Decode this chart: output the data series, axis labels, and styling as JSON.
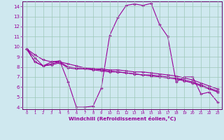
{
  "background_color": "#cfe8ef",
  "plot_bg_color": "#cfe8ef",
  "grid_color": "#9dc8b8",
  "line_color": "#990099",
  "spine_color": "#660066",
  "xlabel": "Windchill (Refroidissement éolien,°C)",
  "xlim": [
    -0.5,
    23.5
  ],
  "ylim": [
    3.8,
    14.5
  ],
  "yticks": [
    4,
    5,
    6,
    7,
    8,
    9,
    10,
    11,
    12,
    13,
    14
  ],
  "xticks": [
    0,
    1,
    2,
    3,
    4,
    5,
    6,
    7,
    8,
    9,
    10,
    11,
    12,
    13,
    14,
    15,
    16,
    17,
    18,
    19,
    20,
    21,
    22,
    23
  ],
  "series": [
    {
      "x": [
        0,
        1,
        2,
        3,
        4,
        5,
        6,
        7,
        8,
        9,
        10,
        11,
        12,
        13,
        14,
        15,
        16,
        17,
        18,
        19,
        20,
        21,
        22,
        23
      ],
      "y": [
        9.8,
        8.9,
        8.1,
        8.5,
        8.6,
        6.5,
        4.0,
        4.0,
        4.1,
        5.9,
        11.1,
        12.9,
        14.1,
        14.25,
        14.1,
        14.3,
        12.2,
        11.0,
        6.5,
        7.0,
        7.0,
        5.3,
        5.5,
        4.5
      ]
    },
    {
      "x": [
        0,
        1,
        2,
        3,
        4,
        5,
        6,
        7,
        8,
        9,
        10,
        11,
        12,
        13,
        14,
        15,
        16,
        17,
        18,
        19,
        20,
        21,
        22,
        23
      ],
      "y": [
        9.8,
        9.2,
        8.7,
        8.5,
        8.5,
        8.3,
        8.1,
        7.9,
        7.8,
        7.7,
        7.6,
        7.5,
        7.4,
        7.3,
        7.2,
        7.1,
        7.0,
        6.9,
        6.8,
        6.6,
        6.4,
        6.1,
        5.8,
        5.5
      ]
    },
    {
      "x": [
        0,
        1,
        2,
        3,
        4,
        5,
        6,
        7,
        8,
        9,
        10,
        11,
        12,
        13,
        14,
        15,
        16,
        17,
        18,
        19,
        20,
        21,
        22,
        23
      ],
      "y": [
        9.8,
        8.5,
        8.1,
        8.2,
        8.4,
        7.9,
        7.8,
        7.8,
        7.7,
        7.6,
        7.5,
        7.5,
        7.4,
        7.3,
        7.2,
        7.2,
        7.1,
        7.0,
        6.9,
        6.7,
        6.5,
        6.2,
        5.9,
        5.6
      ]
    },
    {
      "x": [
        0,
        1,
        2,
        3,
        4,
        5,
        6,
        7,
        8,
        9,
        10,
        11,
        12,
        13,
        14,
        15,
        16,
        17,
        18,
        19,
        20,
        21,
        22,
        23
      ],
      "y": [
        9.8,
        8.5,
        8.1,
        8.3,
        8.5,
        8.0,
        7.9,
        7.9,
        7.8,
        7.8,
        7.7,
        7.7,
        7.6,
        7.5,
        7.5,
        7.4,
        7.3,
        7.2,
        7.1,
        6.9,
        6.7,
        6.4,
        6.1,
        5.8
      ]
    }
  ]
}
